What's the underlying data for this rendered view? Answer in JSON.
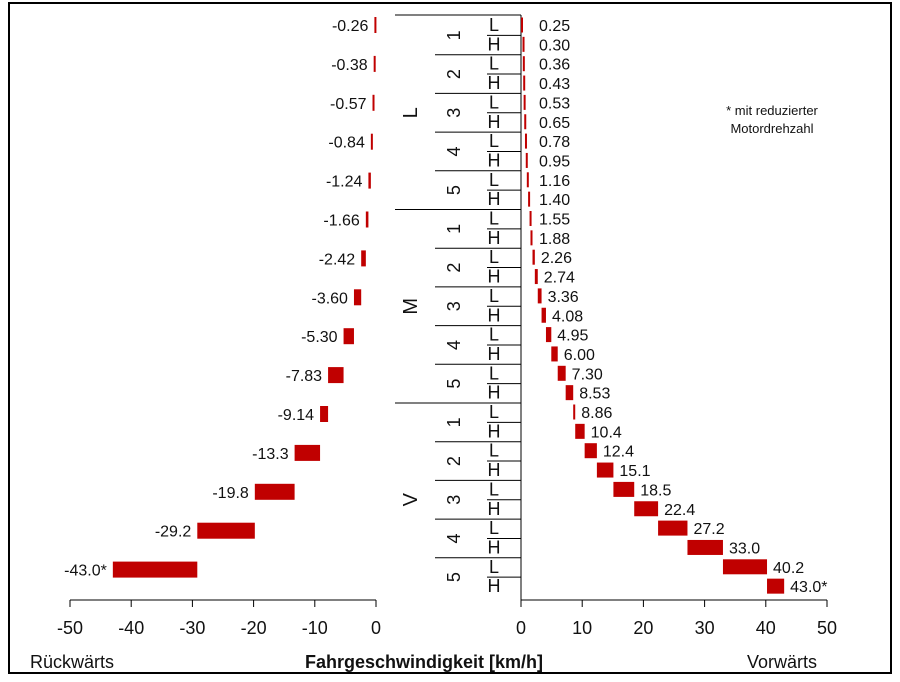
{
  "chart_data": {
    "type": "bar",
    "title": "",
    "xlabel": "Fahrgeschwindigkeit [km/h]",
    "xlabel_left": "Rückwärts",
    "xlabel_right": "Vorwärts",
    "note_line1": "* mit reduzierter",
    "note_line2": "Motordrehzahl",
    "bar_color": "#c00000",
    "grid": false,
    "reverse": {
      "xlim": [
        -50,
        0
      ],
      "ticks": [
        "-50",
        "-40",
        "-30",
        "-20",
        "-10",
        "0"
      ],
      "labels": [
        "-0.26",
        "-0.38",
        "-0.57",
        "-0.84",
        "-1.24",
        "-1.66",
        "-2.42",
        "-3.60",
        "-5.30",
        "-7.83",
        "-9.14",
        "-13.3",
        "-19.8",
        "-29.2",
        "-43.0*"
      ],
      "values": [
        -0.26,
        -0.38,
        -0.57,
        -0.84,
        -1.24,
        -1.66,
        -2.42,
        -3.6,
        -5.3,
        -7.83,
        -9.14,
        -13.3,
        -19.8,
        -29.2,
        -43.0
      ]
    },
    "forward": {
      "xlim": [
        0,
        50
      ],
      "ticks": [
        "0",
        "10",
        "20",
        "30",
        "40",
        "50"
      ],
      "groups": [
        "L",
        "M",
        "V"
      ],
      "gears": [
        "1",
        "2",
        "3",
        "4",
        "5"
      ],
      "ranges": [
        "L",
        "H"
      ],
      "labels": [
        "0.25",
        "0.30",
        "0.36",
        "0.43",
        "0.53",
        "0.65",
        "0.78",
        "0.95",
        "1.16",
        "1.40",
        "1.55",
        "1.88",
        "2.26",
        "2.74",
        "3.36",
        "4.08",
        "4.95",
        "6.00",
        "7.30",
        "8.53",
        "8.86",
        "10.4",
        "12.4",
        "15.1",
        "18.5",
        "22.4",
        "27.2",
        "33.0",
        "40.2",
        "43.0*"
      ],
      "values": [
        0.25,
        0.3,
        0.36,
        0.43,
        0.53,
        0.65,
        0.78,
        0.95,
        1.16,
        1.4,
        1.55,
        1.88,
        2.26,
        2.74,
        3.36,
        4.08,
        4.95,
        6.0,
        7.3,
        8.53,
        8.86,
        10.4,
        12.4,
        15.1,
        18.5,
        22.4,
        27.2,
        33.0,
        40.2,
        43.0
      ]
    }
  }
}
